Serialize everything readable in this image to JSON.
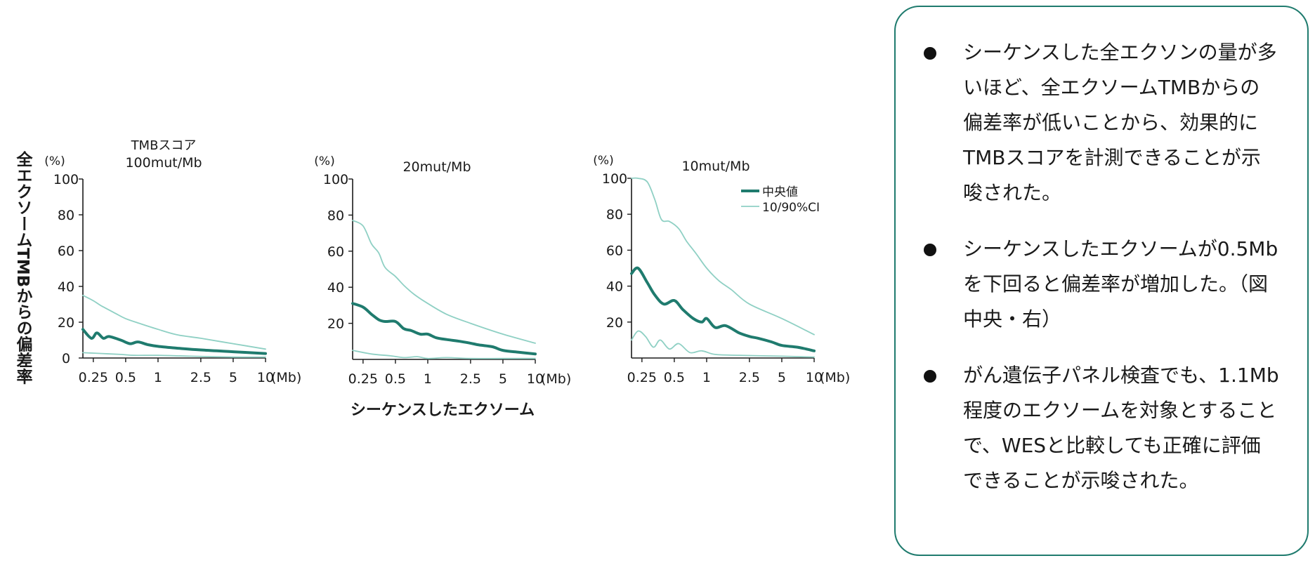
{
  "colors": {
    "median": "#1f7b6e",
    "ci": "#8fd0c4",
    "panel_border": "#1f7b6e"
  },
  "y_axis_label": "全エクソームTMBからの偏差率",
  "x_axis_label": "シーケンスしたエクソーム",
  "legend": {
    "median": "中央値",
    "ci": "10/90%CI"
  },
  "chart_data": [
    {
      "type": "line",
      "title": [
        "TMBスコア",
        "100mut/Mb"
      ],
      "y_unit": "(%)",
      "x_unit": "(Mb)",
      "xscale": "log",
      "xlim": [
        0.2,
        10
      ],
      "ylim": [
        0,
        100
      ],
      "yticks": [
        0,
        20,
        40,
        60,
        80,
        100
      ],
      "xticks": [
        0.25,
        0.5,
        1,
        2.5,
        5,
        10
      ],
      "xticklabels": [
        "0.25",
        "0.5",
        "1",
        "2.5",
        "5",
        "10"
      ],
      "series": [
        {
          "name": "中央値",
          "x": [
            0.2,
            0.24,
            0.27,
            0.31,
            0.35,
            0.45,
            0.55,
            0.65,
            0.8,
            1.0,
            1.5,
            2.5,
            5,
            10
          ],
          "y": [
            16,
            11,
            14,
            11,
            12,
            10,
            8,
            9,
            7.5,
            6.5,
            5.5,
            4.5,
            3.5,
            2.5
          ]
        },
        {
          "name": "10/90%CI",
          "x": [
            0.2,
            0.25,
            0.3,
            0.4,
            0.5,
            0.7,
            1.0,
            1.5,
            2.5,
            5,
            10
          ],
          "y": [
            35,
            32,
            29,
            25,
            22,
            19,
            16,
            13,
            11,
            8,
            5
          ]
        },
        {
          "name": "10/90%CI",
          "x": [
            0.2,
            0.3,
            0.45,
            0.6,
            1.0,
            2.0,
            5,
            10
          ],
          "y": [
            3,
            2.5,
            2,
            1.5,
            1.5,
            1,
            0.5,
            0.5
          ]
        }
      ]
    },
    {
      "type": "line",
      "title": [
        "20mut/Mb"
      ],
      "y_unit": "(%)",
      "x_unit": "(Mb)",
      "xscale": "log",
      "xlim": [
        0.2,
        10
      ],
      "ylim": [
        0,
        100
      ],
      "yticks": [
        20,
        40,
        60,
        80,
        100
      ],
      "xticks": [
        0.25,
        0.5,
        1,
        2.5,
        5,
        10
      ],
      "xticklabels": [
        "0.25",
        "0.5",
        "1",
        "2.5",
        "5",
        "10"
      ],
      "series": [
        {
          "name": "中央値",
          "x": [
            0.2,
            0.25,
            0.3,
            0.35,
            0.4,
            0.5,
            0.6,
            0.7,
            0.85,
            1.0,
            1.2,
            1.5,
            2.0,
            2.5,
            3.0,
            4.0,
            5.0,
            7.0,
            10
          ],
          "y": [
            31,
            29,
            25,
            22,
            21,
            21,
            17,
            16,
            14,
            14,
            12,
            11,
            10,
            9,
            8,
            7,
            5,
            4,
            3
          ]
        },
        {
          "name": "10/90%CI",
          "x": [
            0.2,
            0.25,
            0.3,
            0.35,
            0.4,
            0.5,
            0.6,
            0.75,
            1.0,
            1.5,
            2.5,
            5,
            10
          ],
          "y": [
            77,
            74,
            64,
            59,
            51,
            46,
            41,
            36,
            31,
            25,
            20,
            14,
            9
          ]
        },
        {
          "name": "10/90%CI",
          "x": [
            0.2,
            0.3,
            0.45,
            0.6,
            0.8,
            1.0,
            1.5,
            2.5,
            5,
            10
          ],
          "y": [
            5,
            3,
            2,
            1,
            1.5,
            0.5,
            1,
            0.5,
            0.5,
            0.5
          ]
        }
      ]
    },
    {
      "type": "line",
      "title": [
        "10mut/Mb"
      ],
      "y_unit": "(%)",
      "x_unit": "(Mb)",
      "xscale": "log",
      "xlim": [
        0.2,
        10
      ],
      "ylim": [
        0,
        100
      ],
      "yticks": [
        20,
        40,
        60,
        80,
        100
      ],
      "xticks": [
        0.25,
        0.5,
        1,
        2.5,
        5,
        10
      ],
      "xticklabels": [
        "0.25",
        "0.5",
        "1",
        "2.5",
        "5",
        "10"
      ],
      "legend_entries": [
        "中央値",
        "10/90%CI"
      ],
      "series": [
        {
          "name": "中央値",
          "x": [
            0.2,
            0.23,
            0.28,
            0.33,
            0.4,
            0.5,
            0.6,
            0.75,
            0.9,
            1.0,
            1.2,
            1.5,
            2.0,
            2.5,
            3.0,
            4.0,
            5.0,
            7.0,
            10
          ],
          "y": [
            47,
            50,
            42,
            35,
            30,
            32,
            27,
            22,
            20,
            22,
            17,
            18,
            14,
            12,
            11,
            9,
            7,
            6,
            4
          ]
        },
        {
          "name": "10/90%CI",
          "x": [
            0.2,
            0.23,
            0.28,
            0.33,
            0.38,
            0.45,
            0.55,
            0.65,
            0.8,
            1.0,
            1.3,
            1.7,
            2.5,
            5,
            10
          ],
          "y": [
            100,
            100,
            98,
            88,
            77,
            76,
            72,
            65,
            58,
            50,
            43,
            38,
            30,
            22,
            13
          ]
        },
        {
          "name": "10/90%CI",
          "x": [
            0.2,
            0.23,
            0.27,
            0.32,
            0.37,
            0.45,
            0.55,
            0.7,
            0.9,
            1.2,
            2.0,
            5,
            10
          ],
          "y": [
            10,
            15,
            12,
            6,
            10,
            5,
            8,
            3,
            4,
            2,
            1.5,
            1,
            0.5
          ]
        }
      ]
    }
  ],
  "panel": {
    "items": [
      "シーケンスした全エクソンの量が多いほど、全エクソームTMBからの偏差率が低いことから、効果的にTMBスコアを計測できることが示唆された。",
      "シーケンスしたエクソームが0.5Mbを下回ると偏差率が増加した。（図中央・右）",
      "がん遺伝子パネル検査でも、1.1Mb程度のエクソームを対象とすることで、WESと比較しても正確に評価できることが示唆された。"
    ]
  }
}
